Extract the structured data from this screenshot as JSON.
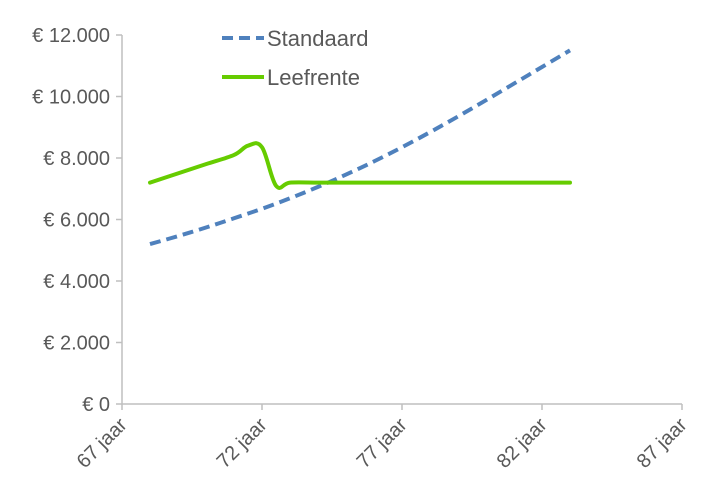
{
  "chart_data": {
    "type": "line",
    "title": "",
    "xlabel": "",
    "ylabel": "",
    "x_ticks": [
      "67 jaar",
      "72 jaar",
      "77 jaar",
      "82 jaar",
      "87 jaar"
    ],
    "x_tick_values": [
      67,
      72,
      77,
      82,
      87
    ],
    "xlim": [
      67,
      87
    ],
    "y_ticks": [
      "€ 0",
      "€ 2.000",
      "€ 4.000",
      "€ 6.000",
      "€ 8.000",
      "€ 10.000",
      "€ 12.000"
    ],
    "y_tick_values": [
      0,
      2000,
      4000,
      6000,
      8000,
      10000,
      12000
    ],
    "ylim": [
      0,
      12000
    ],
    "grid": false,
    "legend_position": "top-center",
    "series": [
      {
        "name": "Standaard",
        "color": "#4f81bd",
        "dash": "dashed",
        "x": [
          68,
          69,
          70,
          71,
          72,
          73,
          74,
          75,
          76,
          77,
          78,
          79,
          80,
          81,
          82,
          83
        ],
        "values": [
          5200,
          5460,
          5740,
          6040,
          6350,
          6690,
          7060,
          7460,
          7890,
          8350,
          8840,
          9350,
          9880,
          10420,
          10960,
          11500
        ]
      },
      {
        "name": "Leefrente",
        "color": "#66cc00",
        "dash": "solid",
        "x": [
          68,
          69,
          70,
          71,
          71.5,
          72,
          72.5,
          73,
          74,
          75,
          76,
          77,
          78,
          79,
          80,
          81,
          82,
          83
        ],
        "values": [
          7200,
          7500,
          7800,
          8100,
          8400,
          8350,
          7100,
          7200,
          7200,
          7200,
          7200,
          7200,
          7200,
          7200,
          7200,
          7200,
          7200,
          7200
        ]
      }
    ]
  }
}
